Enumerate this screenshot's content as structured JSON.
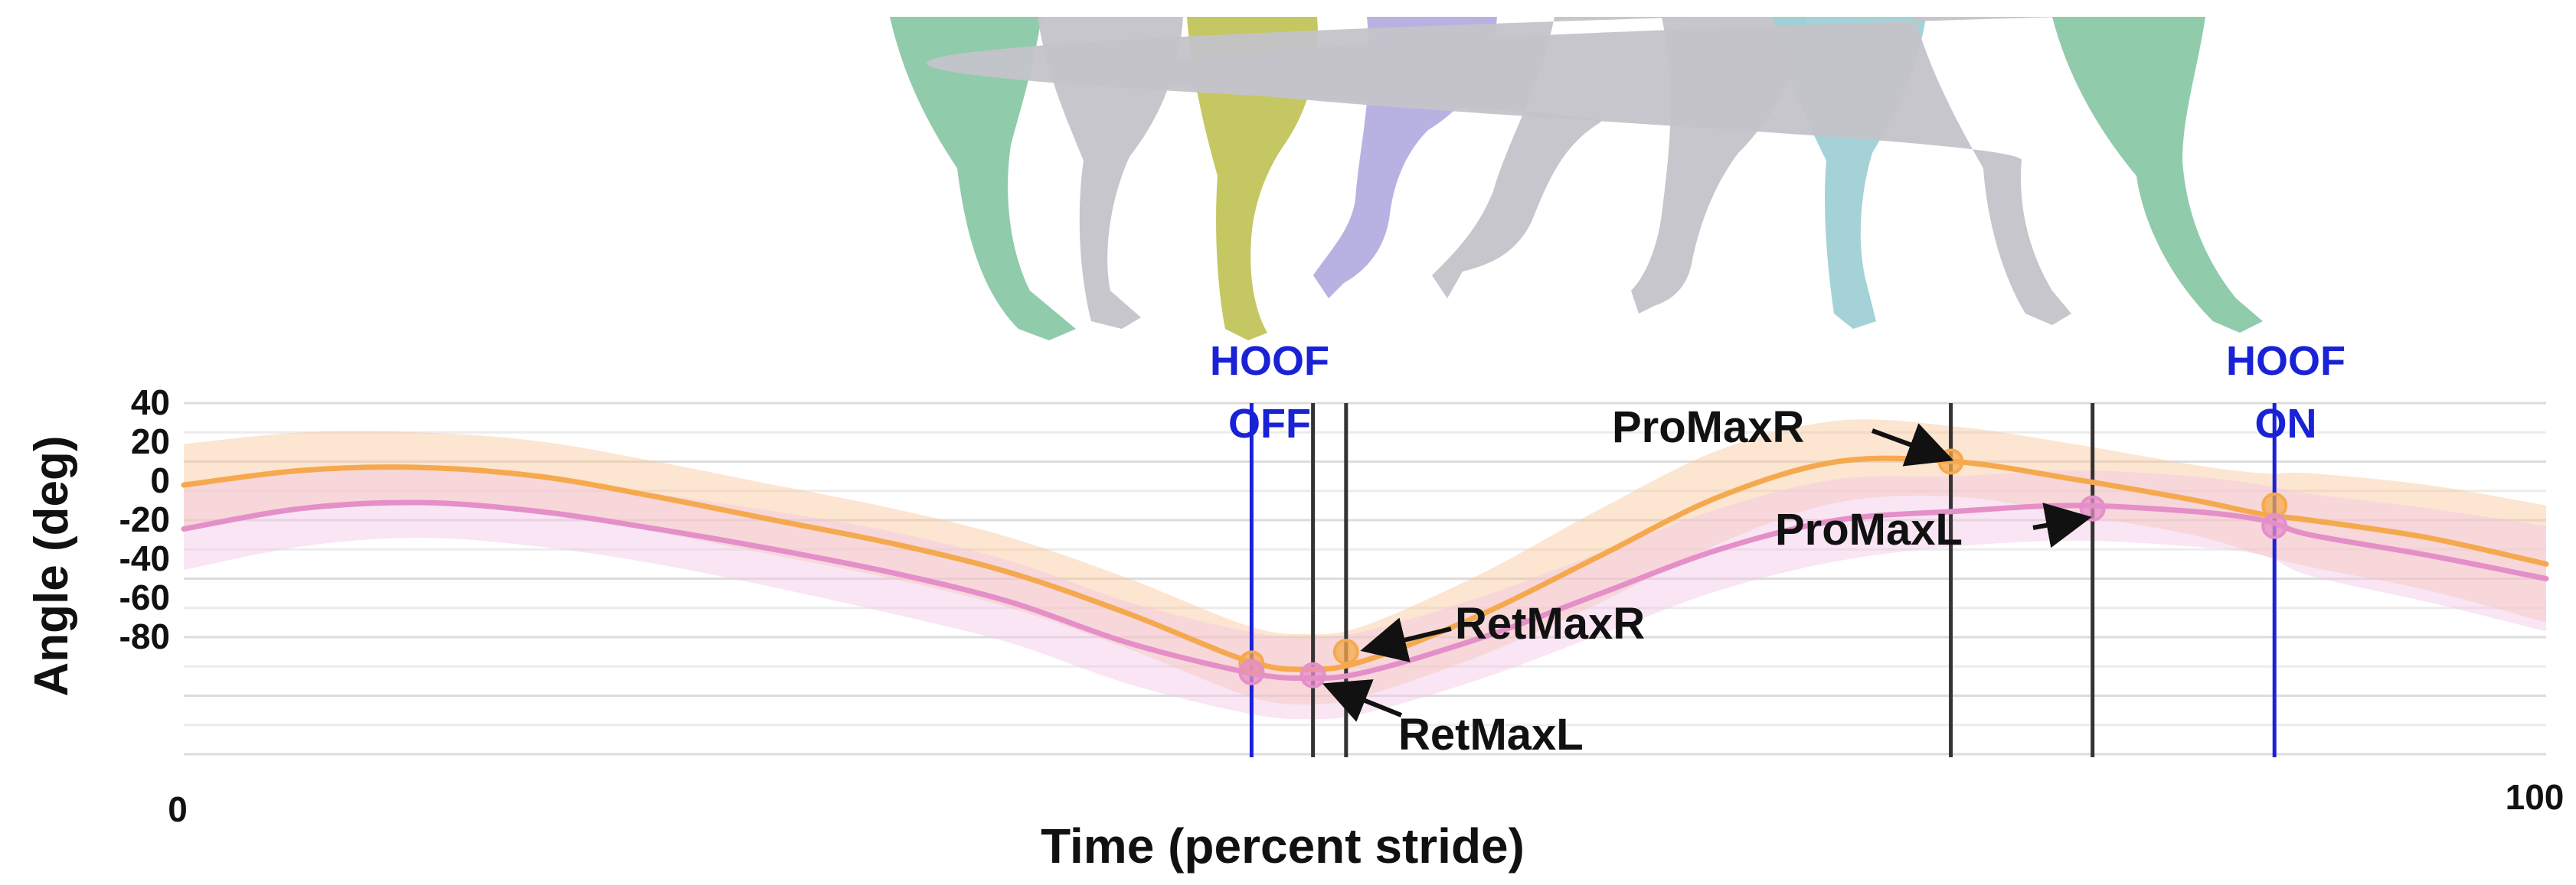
{
  "chart_data": {
    "type": "line",
    "xlabel": "Time (percent stride)",
    "ylabel": "Angle (deg)",
    "xlim": [
      0,
      100
    ],
    "ylim": [
      -80,
      40
    ],
    "x_ticks": [
      "0",
      "100"
    ],
    "y_ticks": [
      "40",
      "20",
      "0",
      "-20",
      "-40",
      "-60",
      "-80"
    ],
    "grid": "horizontal",
    "series": [
      {
        "key": "right",
        "color": "#f5a94e",
        "band_color": "#f9c59a",
        "x": [
          0,
          5,
          10,
          15,
          20,
          25,
          30,
          35,
          40,
          45,
          47.5,
          50,
          55,
          60,
          65,
          70,
          75,
          80,
          85,
          88,
          90,
          95,
          100
        ],
        "y": [
          12,
          17,
          18,
          15,
          8,
          0,
          -8,
          -18,
          -32,
          -48,
          -51,
          -48,
          -32,
          -12,
          8,
          20,
          20,
          14,
          7,
          2,
          0,
          -6,
          -15
        ],
        "band": [
          14,
          13,
          12,
          12,
          12,
          12,
          12,
          12,
          12,
          12,
          12,
          12,
          14,
          16,
          16,
          14,
          12,
          12,
          12,
          14,
          16,
          18,
          20
        ]
      },
      {
        "key": "left",
        "color": "#e48fc8",
        "band_color": "#f2c6e4",
        "x": [
          0,
          5,
          10,
          15,
          20,
          25,
          30,
          35,
          40,
          45,
          47.5,
          50,
          55,
          60,
          65,
          70,
          75,
          80,
          85,
          88,
          90,
          95,
          100
        ],
        "y": [
          -3,
          4,
          6,
          3,
          -3,
          -10,
          -18,
          -28,
          -42,
          -52,
          -54,
          -52,
          -40,
          -25,
          -10,
          0,
          3,
          5,
          3,
          0,
          -5,
          -12,
          -20
        ],
        "band": [
          14,
          13,
          12,
          12,
          12,
          13,
          14,
          14,
          14,
          14,
          14,
          14,
          14,
          14,
          14,
          14,
          12,
          12,
          12,
          12,
          14,
          16,
          18
        ]
      }
    ],
    "event_lines": [
      {
        "x": 45.2,
        "color": "#1a22d6"
      },
      {
        "x": 47.8,
        "color": "#333333"
      },
      {
        "x": 49.2,
        "color": "#333333"
      },
      {
        "x": 74.8,
        "color": "#333333"
      },
      {
        "x": 80.8,
        "color": "#333333"
      },
      {
        "x": 88.5,
        "color": "#1a22d6"
      }
    ],
    "markers": [
      {
        "x": 45.2,
        "y": -49,
        "color": "#f5a94e"
      },
      {
        "x": 45.2,
        "y": -52,
        "color": "#e48fc8"
      },
      {
        "x": 47.8,
        "y": -53,
        "color": "#e48fc8"
      },
      {
        "x": 49.2,
        "y": -45,
        "color": "#f5a94e"
      },
      {
        "x": 74.8,
        "y": 20,
        "color": "#f5a94e"
      },
      {
        "x": 80.8,
        "y": 4,
        "color": "#e48fc8"
      },
      {
        "x": 88.5,
        "y": 5,
        "color": "#f5a94e"
      },
      {
        "x": 88.5,
        "y": -2,
        "color": "#e48fc8"
      }
    ],
    "event_labels": [
      {
        "line1": "HOOF",
        "line2": "OFF"
      },
      {
        "line1": "HOOF",
        "line2": "ON"
      }
    ],
    "annotations": [
      "ProMaxR",
      "ProMaxL",
      "RetMaxR",
      "RetMaxL"
    ],
    "legs": [
      {
        "color": "#8ac8a6"
      },
      {
        "color": "#c4c3c9"
      },
      {
        "color": "#c2c45a"
      },
      {
        "color": "#b4aee0"
      },
      {
        "color": "#c4c3c9"
      },
      {
        "color": "#c4c3c9"
      },
      {
        "color": "#9fd0d5"
      },
      {
        "color": "#c4c3c9"
      },
      {
        "color": "#8ac8a6"
      }
    ]
  }
}
